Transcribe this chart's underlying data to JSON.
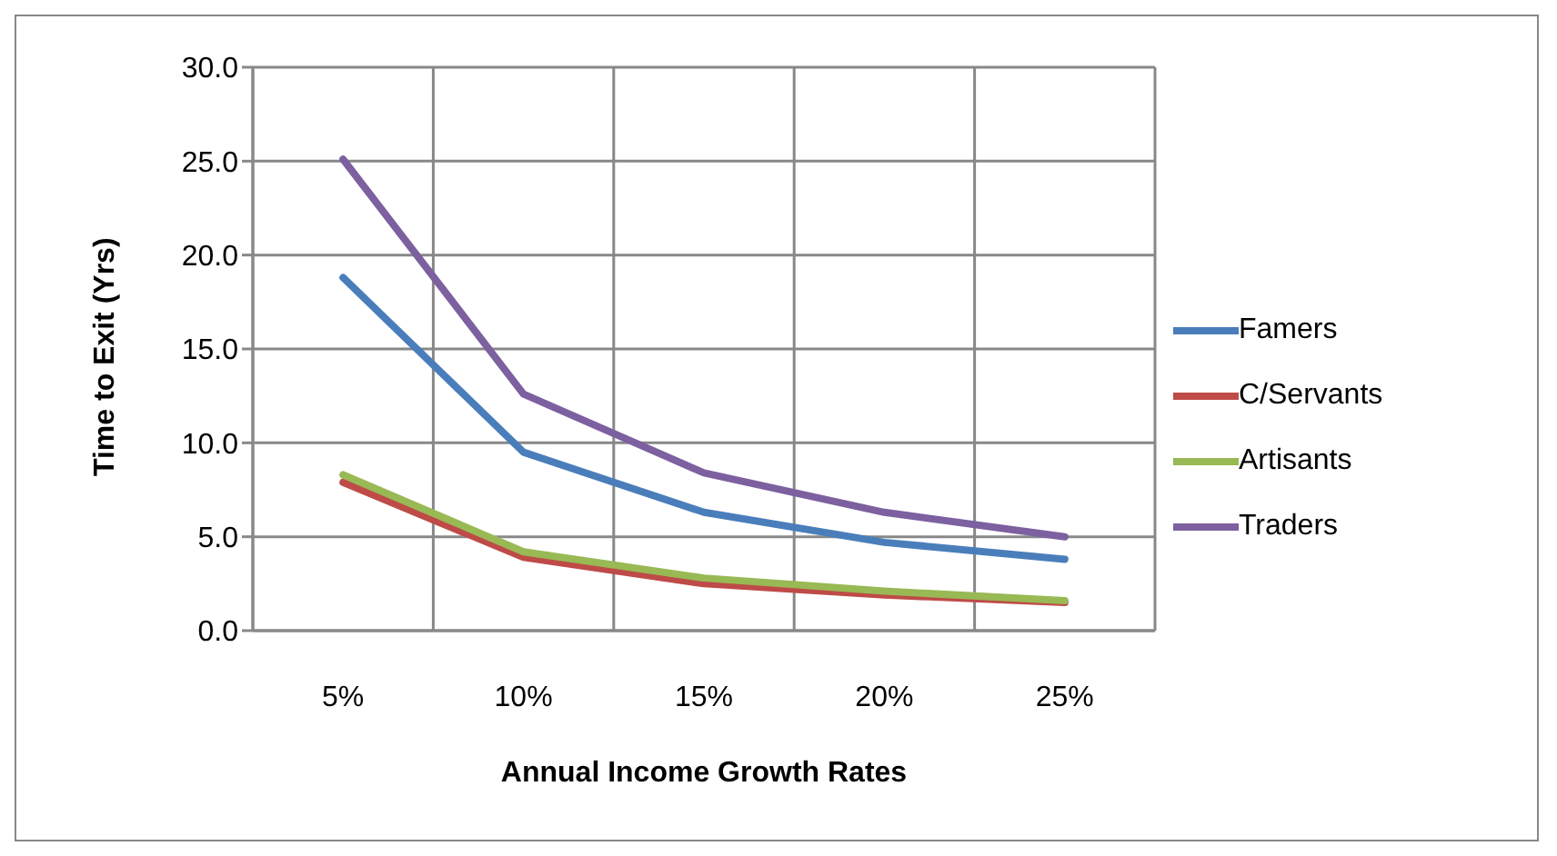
{
  "chart_data": {
    "type": "line",
    "xlabel": "Annual Income Growth Rates",
    "ylabel": "Time to Exit (Yrs)",
    "categories": [
      "5%",
      "10%",
      "15%",
      "20%",
      "25%"
    ],
    "series": [
      {
        "name": "Famers",
        "color": "#4a7ebb",
        "values": [
          18.8,
          9.5,
          6.3,
          4.7,
          3.8
        ]
      },
      {
        "name": "C/Servants",
        "color": "#be4b48",
        "values": [
          7.9,
          3.9,
          2.5,
          1.9,
          1.5
        ]
      },
      {
        "name": "Artisants",
        "color": "#98b954",
        "values": [
          8.3,
          4.2,
          2.8,
          2.1,
          1.6
        ]
      },
      {
        "name": "Traders",
        "color": "#7d60a0",
        "values": [
          25.1,
          12.6,
          8.4,
          6.3,
          5.0
        ]
      }
    ],
    "ylim": [
      0,
      30
    ],
    "yticks": [
      {
        "value": 0,
        "label": "0.0"
      },
      {
        "value": 5,
        "label": "5.0"
      },
      {
        "value": 10,
        "label": "10.0"
      },
      {
        "value": 15,
        "label": "15.0"
      },
      {
        "value": 20,
        "label": "20.0"
      },
      {
        "value": 25,
        "label": "25.0"
      },
      {
        "value": 30,
        "label": "30.0"
      }
    ],
    "grid": true,
    "legend": "right",
    "marker": "none",
    "line_style": "solid"
  }
}
